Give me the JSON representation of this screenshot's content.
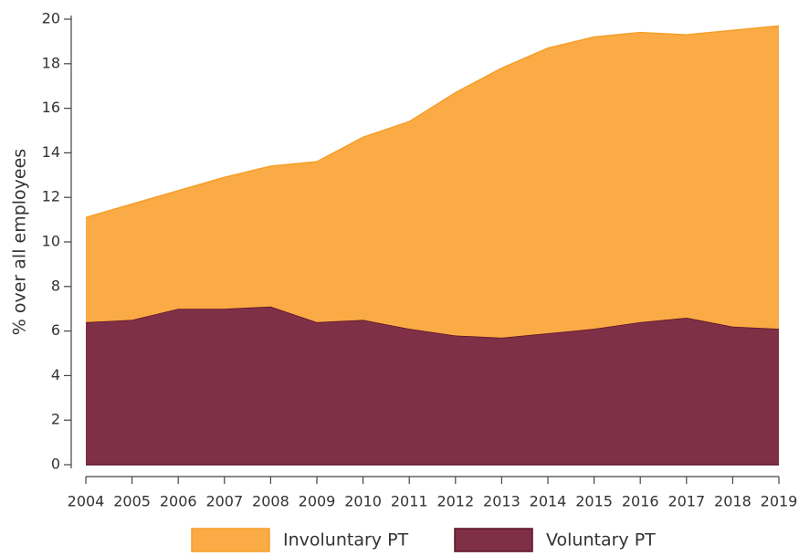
{
  "chart_data": {
    "type": "stacked-area",
    "y_label": "% over all employees",
    "x": [
      2004,
      2005,
      2006,
      2007,
      2008,
      2009,
      2010,
      2011,
      2012,
      2013,
      2014,
      2015,
      2016,
      2017,
      2018,
      2019
    ],
    "series": [
      {
        "name": "Voluntary PT",
        "color": "#7f3047",
        "values": [
          6.4,
          6.5,
          7.0,
          7.0,
          7.1,
          6.4,
          6.5,
          6.1,
          5.8,
          5.7,
          5.9,
          6.1,
          6.4,
          6.6,
          6.2,
          6.1
        ]
      },
      {
        "name": "Involuntary PT",
        "color": "#fbab45",
        "values": [
          4.7,
          5.2,
          5.3,
          5.9,
          6.3,
          7.2,
          8.2,
          9.3,
          10.9,
          12.1,
          12.8,
          13.1,
          13.0,
          12.7,
          13.3,
          13.6
        ]
      }
    ],
    "xlim": [
      2004,
      2019
    ],
    "xticks": [
      2004,
      2005,
      2006,
      2007,
      2008,
      2009,
      2010,
      2011,
      2012,
      2013,
      2014,
      2015,
      2016,
      2017,
      2018,
      2019
    ],
    "ylim": [
      0,
      20
    ],
    "yticks": [
      0,
      2,
      4,
      6,
      8,
      10,
      12,
      14,
      16,
      18,
      20
    ],
    "legend_order": [
      1,
      0
    ]
  }
}
